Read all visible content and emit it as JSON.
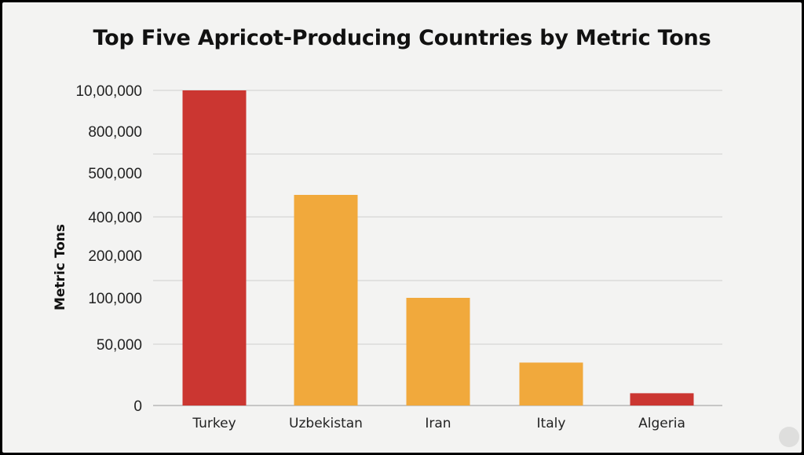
{
  "chart_data": {
    "type": "bar",
    "title": "Top Five Apricot-Producing Countries by Metric Tons",
    "xlabel": "",
    "ylabel": "Metric Tons",
    "categories": [
      "Turkey",
      "Uzbekistan",
      "Iran",
      "Italy",
      "Algeria"
    ],
    "values": [
      1000000,
      450000,
      100000,
      35000,
      10000
    ],
    "y_tick_labels": [
      "0",
      "50,000",
      "100,000",
      "200,000",
      "400,000",
      "500,000",
      "800,000",
      "10,00,000"
    ],
    "y_tick_values": [
      0,
      50000,
      100000,
      200000,
      400000,
      500000,
      800000,
      1000000
    ],
    "grid": true,
    "legend": "none",
    "colors": {
      "highlight": "#cb3631",
      "standard": "#f1a93c"
    },
    "bar_color_keys": [
      "highlight",
      "standard",
      "standard",
      "standard",
      "highlight"
    ]
  }
}
